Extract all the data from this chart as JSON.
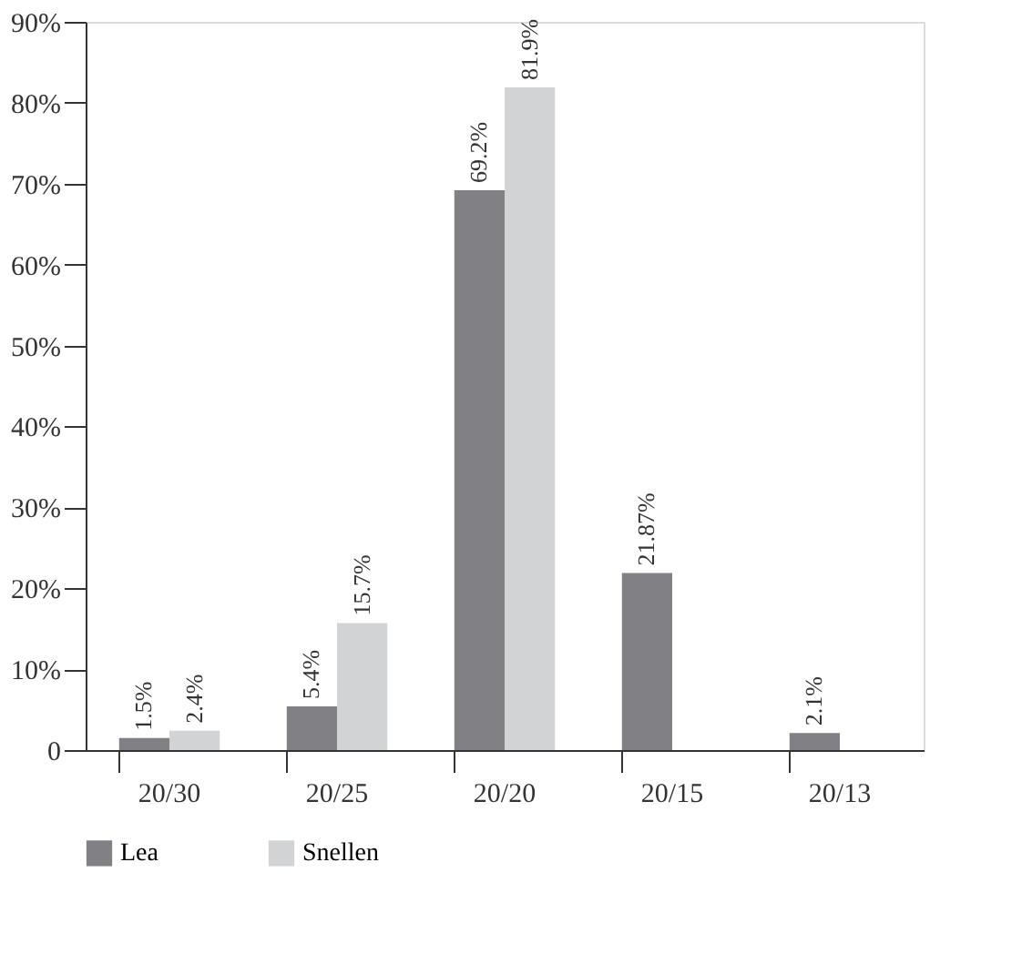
{
  "chart_data": {
    "type": "bar",
    "categories": [
      "20/30",
      "20/25",
      "20/20",
      "20/15",
      "20/13"
    ],
    "series": [
      {
        "name": "Lea",
        "color": "#808085",
        "values": [
          1.5,
          5.4,
          69.2,
          21.87,
          2.1
        ],
        "value_labels": [
          "1.5%",
          "5.4%",
          "69.2%",
          "21.87%",
          "2.1%"
        ]
      },
      {
        "name": "Snellen",
        "color": "#d2d3d5",
        "values": [
          2.4,
          15.7,
          81.9,
          null,
          null
        ],
        "value_labels": [
          "2.4%",
          "15.7%",
          "81.9%",
          null,
          null
        ]
      }
    ],
    "ylim": [
      0,
      90
    ],
    "yticks": [
      0,
      {
        "value": 10,
        "label": "10%"
      },
      {
        "value": 20,
        "label": "20%"
      },
      {
        "value": 30,
        "label": "30%"
      },
      {
        "value": 40,
        "label": "40%"
      },
      {
        "value": 50,
        "label": "50%"
      },
      {
        "value": 60,
        "label": "60%"
      },
      {
        "value": 70,
        "label": "70%"
      },
      {
        "value": 80,
        "label": "80%"
      },
      {
        "value": 90,
        "label": "90%"
      }
    ],
    "grid": false,
    "legend": "bottom"
  }
}
